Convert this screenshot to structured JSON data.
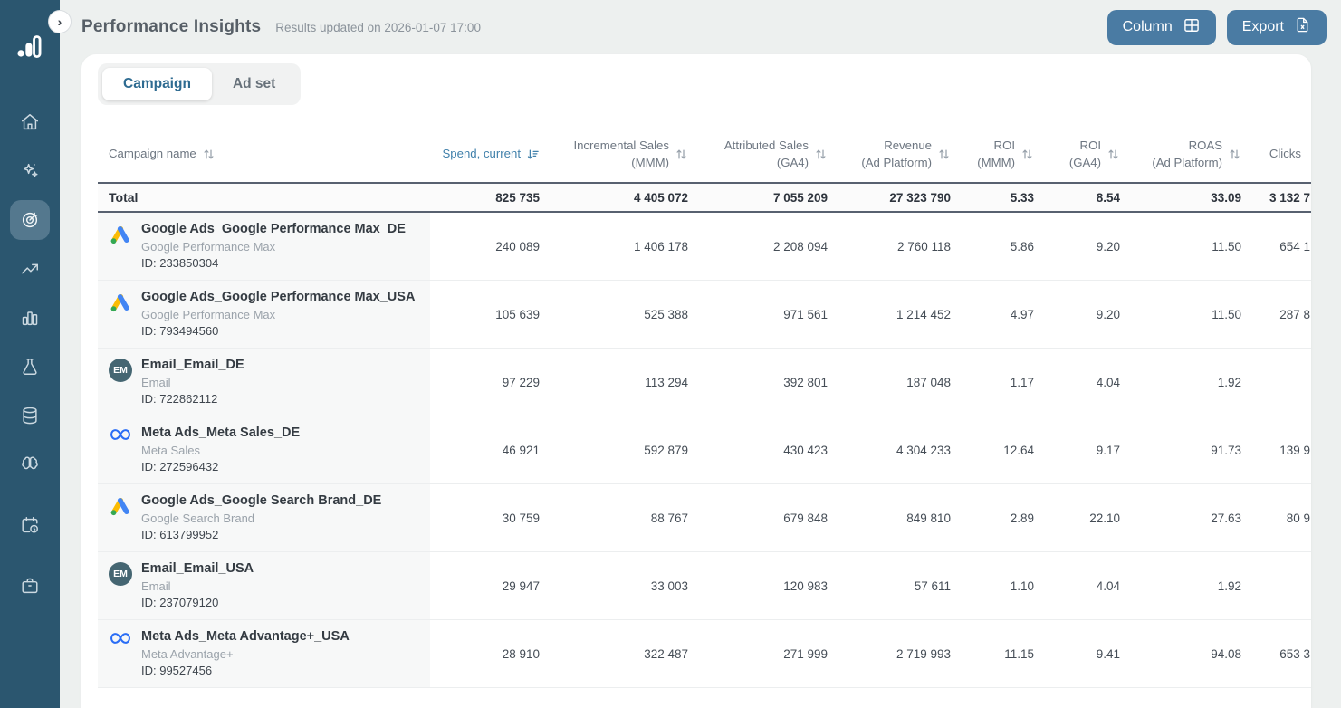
{
  "colors": {
    "sidebar_bg": "#2b566f",
    "accent_button": "#4a7ba3",
    "active_tab_text": "#2e6b91",
    "active_sort": "#4181ab",
    "google_blue": "#4285f4",
    "google_yellow": "#fbbc04",
    "google_green": "#34a853",
    "meta_blue": "#2a6df5",
    "email_avatar_bg": "#456672"
  },
  "sidebar": {
    "logo_icon": "analytics-logo-icon",
    "active_index": 2,
    "items": [
      {
        "icon": "home-icon"
      },
      {
        "icon": "sparkles-icon"
      },
      {
        "icon": "target-icon"
      },
      {
        "icon": "trending-up-icon"
      },
      {
        "icon": "bar-chart-icon"
      },
      {
        "icon": "flask-icon"
      },
      {
        "icon": "database-icon"
      },
      {
        "icon": "brain-icon"
      },
      {
        "icon": "calendar-clock-icon"
      },
      {
        "icon": "briefcase-icon"
      }
    ]
  },
  "header": {
    "title": "Performance Insights",
    "updated": "Results updated on 2026-01-07 17:00",
    "column_button": "Column",
    "column_button_icon": "grid-icon",
    "export_button": "Export",
    "export_button_icon": "file-export-icon",
    "collapse_icon": "chevron-right-icon"
  },
  "tabs": {
    "active_index": 0,
    "items": [
      "Campaign",
      "Ad set"
    ]
  },
  "table": {
    "columns": [
      {
        "id": "name",
        "line1": "Campaign name",
        "line2": "",
        "sort": "both",
        "align": "left"
      },
      {
        "id": "spend",
        "line1": "Spend, current",
        "line2": "",
        "sort": "desc",
        "align": "right"
      },
      {
        "id": "incremental",
        "line1": "Incremental Sales",
        "line2": "(MMM)",
        "sort": "both",
        "align": "right"
      },
      {
        "id": "attributed",
        "line1": "Attributed Sales",
        "line2": "(GA4)",
        "sort": "both",
        "align": "right"
      },
      {
        "id": "revenue",
        "line1": "Revenue",
        "line2": "(Ad Platform)",
        "sort": "both",
        "align": "right"
      },
      {
        "id": "roi_mmm",
        "line1": "ROI",
        "line2": "(MMM)",
        "sort": "both",
        "align": "right"
      },
      {
        "id": "roi_ga4",
        "line1": "ROI",
        "line2": "(GA4)",
        "sort": "both",
        "align": "right"
      },
      {
        "id": "roas",
        "line1": "ROAS",
        "line2": "(Ad Platform)",
        "sort": "both",
        "align": "right"
      },
      {
        "id": "clicks",
        "line1": "Clicks",
        "line2": "",
        "sort": "none",
        "align": "right"
      }
    ],
    "sorted_column": "spend",
    "total": {
      "label": "Total",
      "values": [
        "825 735",
        "4 405 072",
        "7 055 209",
        "27 323 790",
        "5.33",
        "8.54",
        "33.09",
        "3 132 7"
      ]
    },
    "rows": [
      {
        "icon": "google-ads-icon",
        "name": "Google Ads_Google Performance Max_DE",
        "subtitle": "Google Performance Max",
        "id_label": "ID: 233850304",
        "values": [
          "240 089",
          "1 406 178",
          "2 208 094",
          "2 760 118",
          "5.86",
          "9.20",
          "11.50",
          "654 1"
        ]
      },
      {
        "icon": "google-ads-icon",
        "name": "Google Ads_Google Performance Max_USA",
        "subtitle": "Google Performance Max",
        "id_label": "ID: 793494560",
        "values": [
          "105 639",
          "525 388",
          "971 561",
          "1 214 452",
          "4.97",
          "9.20",
          "11.50",
          "287 8"
        ]
      },
      {
        "icon": "email-avatar",
        "icon_text": "EM",
        "name": "Email_Email_DE",
        "subtitle": "Email",
        "id_label": "ID: 722862112",
        "values": [
          "97 229",
          "113 294",
          "392 801",
          "187 048",
          "1.17",
          "4.04",
          "1.92",
          ""
        ]
      },
      {
        "icon": "meta-icon",
        "name": "Meta Ads_Meta Sales_DE",
        "subtitle": "Meta Sales",
        "id_label": "ID: 272596432",
        "values": [
          "46 921",
          "592 879",
          "430 423",
          "4 304 233",
          "12.64",
          "9.17",
          "91.73",
          "139 9"
        ]
      },
      {
        "icon": "google-ads-icon",
        "name": "Google Ads_Google Search Brand_DE",
        "subtitle": "Google Search Brand",
        "id_label": "ID: 613799952",
        "values": [
          "30 759",
          "88 767",
          "679 848",
          "849 810",
          "2.89",
          "22.10",
          "27.63",
          "80 9"
        ]
      },
      {
        "icon": "email-avatar",
        "icon_text": "EM",
        "name": "Email_Email_USA",
        "subtitle": "Email",
        "id_label": "ID: 237079120",
        "values": [
          "29 947",
          "33 003",
          "120 983",
          "57 611",
          "1.10",
          "4.04",
          "1.92",
          ""
        ]
      },
      {
        "icon": "meta-icon",
        "name": "Meta Ads_Meta Advantage+_USA",
        "subtitle": "Meta Advantage+",
        "id_label": "ID: 99527456",
        "values": [
          "28 910",
          "322 487",
          "271 999",
          "2 719 993",
          "11.15",
          "9.41",
          "94.08",
          "653 3"
        ]
      }
    ]
  }
}
